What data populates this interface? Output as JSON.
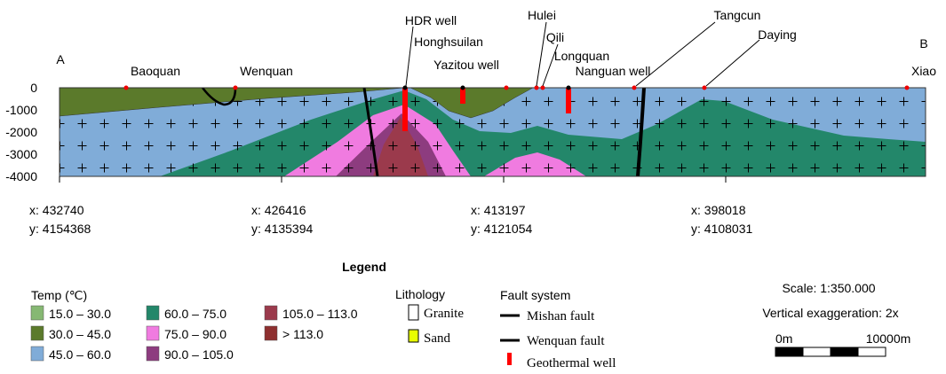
{
  "section": {
    "end_labels": [
      "A",
      "B"
    ],
    "stations": [
      "Baoquan",
      "Wenquan",
      "HDR well",
      "Honghsuilan",
      "Yazitou well",
      "Hulei",
      "Qili",
      "Longquan",
      "Nanguan well",
      "Tangcun",
      "Daying",
      "Xiao"
    ],
    "depth_ticks": [
      "0",
      "-1000",
      "-2000",
      "-3000",
      "-4000"
    ],
    "coordinates": [
      {
        "x": "x: 432740",
        "y": "y: 4154368"
      },
      {
        "x": "x: 426416",
        "y": "y: 4135394"
      },
      {
        "x": "x: 413197",
        "y": "y: 4121054"
      },
      {
        "x": "x: 398018",
        "y": "y: 4108031"
      }
    ]
  },
  "legend": {
    "title": "Legend",
    "temp": {
      "title": "Temp (℃)",
      "classes": [
        "15.0 – 30.0",
        "30.0 – 45.0",
        "45.0 – 60.0",
        "60.0 – 75.0",
        "75.0 – 90.0",
        "90.0 – 105.0",
        "105.0 – 113.0",
        "> 113.0"
      ]
    },
    "lithology": {
      "title": "Lithology",
      "items": [
        "Granite",
        "Sand"
      ]
    },
    "fault_system": {
      "title": "Fault system",
      "items": [
        "Mishan fault",
        "Wenquan fault",
        "Geothermal well"
      ]
    },
    "scale": {
      "ratio": "Scale: 1:350.000",
      "exaggeration": "Vertical exaggeration: 2x",
      "bar_labels": [
        "0m",
        "10000m"
      ]
    }
  }
}
